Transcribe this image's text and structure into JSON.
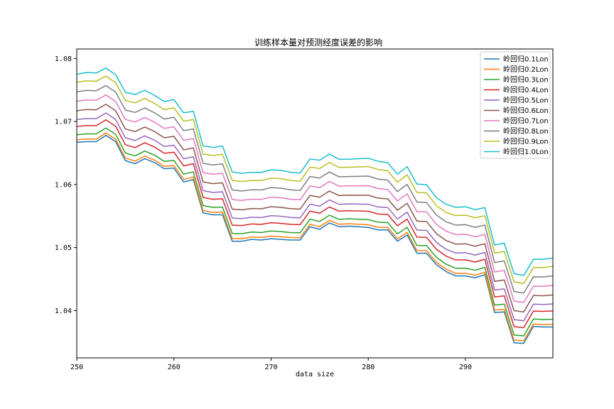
{
  "chart_data": {
    "type": "line",
    "title": "训练样本量对预测经度误差的影响",
    "xlabel": "data size",
    "ylabel": "",
    "xlim": [
      250,
      299
    ],
    "ylim": [
      1.0325,
      1.0815
    ],
    "xticks": [
      250,
      260,
      270,
      280,
      290
    ],
    "yticks": [
      1.04,
      1.05,
      1.06,
      1.07,
      1.08
    ],
    "ytick_labels": [
      "1.04",
      "1.05",
      "1.06",
      "1.07",
      "1.08"
    ],
    "legend_position": "top-right",
    "x": [
      250,
      251,
      252,
      253,
      254,
      255,
      256,
      257,
      258,
      259,
      260,
      261,
      262,
      263,
      264,
      265,
      266,
      267,
      268,
      269,
      270,
      271,
      272,
      273,
      274,
      275,
      276,
      277,
      278,
      279,
      280,
      281,
      282,
      283,
      284,
      285,
      286,
      287,
      288,
      289,
      290,
      291,
      292,
      293,
      294,
      295,
      296,
      297,
      298,
      299
    ],
    "base_values": [
      1.0667,
      1.0668,
      1.0668,
      1.0678,
      1.0668,
      1.0638,
      1.0633,
      1.0641,
      1.0635,
      1.0625,
      1.0626,
      1.0604,
      1.0608,
      1.0555,
      1.0552,
      1.0552,
      1.051,
      1.051,
      1.0513,
      1.0512,
      1.0514,
      1.0513,
      1.0512,
      1.0512,
      1.0533,
      1.0529,
      1.0539,
      1.0533,
      1.0534,
      1.0533,
      1.0532,
      1.0528,
      1.0528,
      1.051,
      1.052,
      1.0491,
      1.0491,
      1.0473,
      1.0462,
      1.0455,
      1.0455,
      1.0452,
      1.0457,
      1.0397,
      1.0398,
      1.0349,
      1.0348,
      1.0375,
      1.0374,
      1.0374
    ],
    "series": [
      {
        "name": "岭回归0.1Lon",
        "color": "#1f77b4",
        "offset": 0.0,
        "spread": 0
      },
      {
        "name": "岭回归0.2Lon",
        "color": "#ff7f0e",
        "offset": 0.0004,
        "spread": 1
      },
      {
        "name": "岭回归0.3Lon",
        "color": "#2ca02c",
        "offset": 0.0012,
        "spread": 2
      },
      {
        "name": "岭回归0.4Lon",
        "color": "#d62728",
        "offset": 0.0025,
        "spread": 3
      },
      {
        "name": "岭回归0.5Lon",
        "color": "#9467bd",
        "offset": 0.0036,
        "spread": 4
      },
      {
        "name": "岭回归0.6Lon",
        "color": "#8c564b",
        "offset": 0.005,
        "spread": 5
      },
      {
        "name": "岭回归0.7Lon",
        "color": "#e377c2",
        "offset": 0.0065,
        "spread": 6
      },
      {
        "name": "岭回归0.8Lon",
        "color": "#7f7f7f",
        "offset": 0.008,
        "spread": 7
      },
      {
        "name": "岭回归0.9Lon",
        "color": "#bcbd22",
        "offset": 0.0095,
        "spread": 8
      },
      {
        "name": "岭回归1.0Lon",
        "color": "#17becf",
        "offset": 0.0108,
        "spread": 9
      }
    ]
  }
}
